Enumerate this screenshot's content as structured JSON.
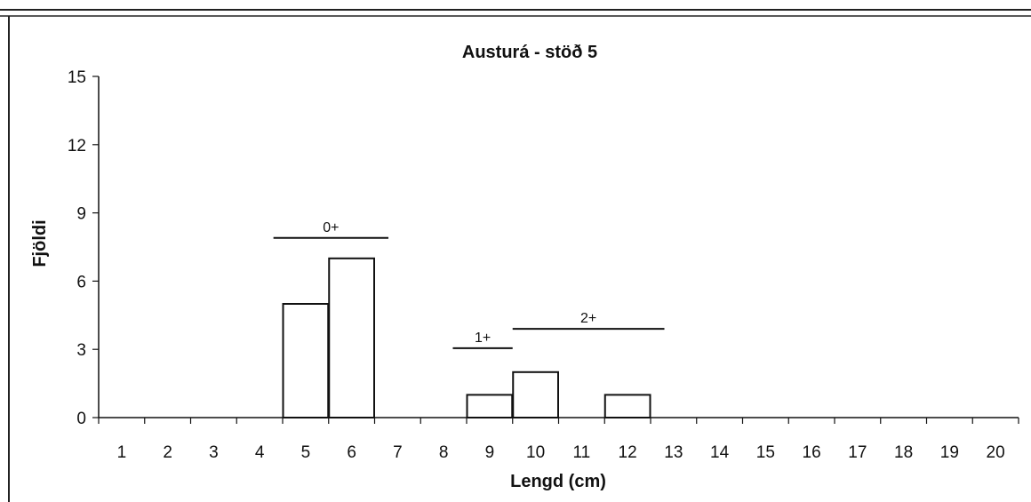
{
  "chart_data": {
    "type": "bar",
    "title": "Austurá - stöð 5",
    "xlabel": "Lengd (cm)",
    "ylabel": "Fjöldi",
    "categories": [
      "1",
      "2",
      "3",
      "4",
      "5",
      "6",
      "7",
      "8",
      "9",
      "10",
      "11",
      "12",
      "13",
      "14",
      "15",
      "16",
      "17",
      "18",
      "19",
      "20"
    ],
    "values": [
      0,
      0,
      0,
      0,
      5,
      7,
      0,
      0,
      1,
      2,
      0,
      1,
      0,
      0,
      0,
      0,
      0,
      0,
      0,
      0
    ],
    "ylim": [
      0,
      15
    ],
    "yticks": [
      0,
      3,
      6,
      9,
      12,
      15
    ],
    "grid": false,
    "legend": "none",
    "colors": {
      "bar_fill": "#ffffff",
      "stroke": "#111111"
    },
    "annotations": [
      {
        "label": "0+",
        "x_start": 4.3,
        "x_end": 6.8,
        "y": 7.9
      },
      {
        "label": "1+",
        "x_start": 8.2,
        "x_end": 9.5,
        "y": 3.05
      },
      {
        "label": "2+",
        "x_start": 9.5,
        "x_end": 12.8,
        "y": 3.9
      }
    ]
  }
}
